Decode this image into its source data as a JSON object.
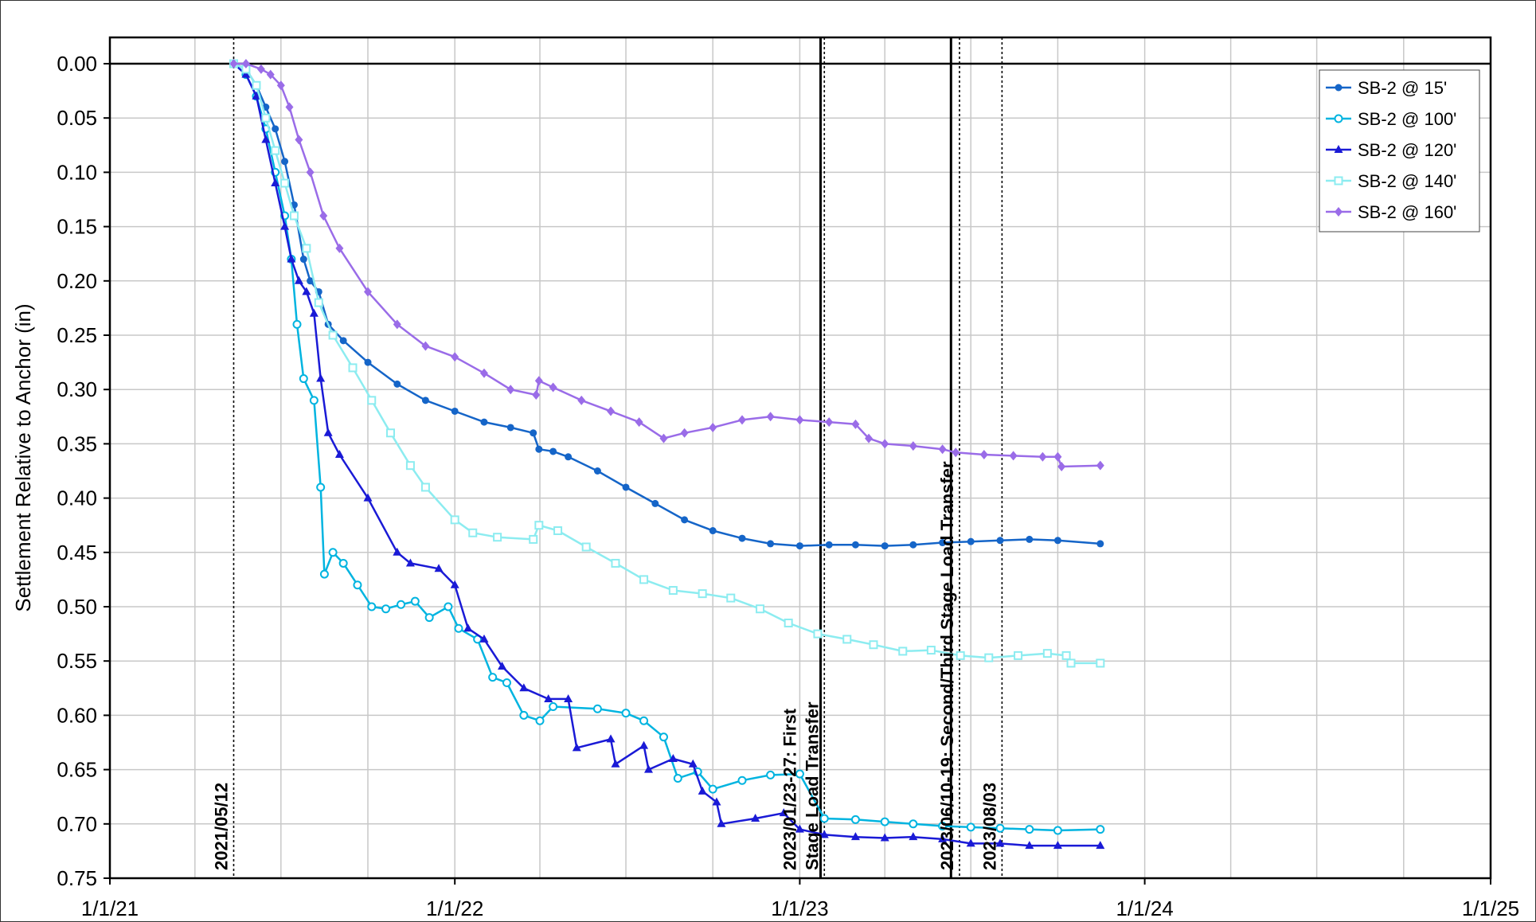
{
  "chart_data": {
    "type": "line",
    "title": "",
    "xlabel": "",
    "ylabel": "Settlement Relative to Anchor (in)",
    "x_axis": {
      "type": "date",
      "min": "2021-01-01",
      "max": "2025-01-01",
      "labeled_ticks": [
        "1/1/21",
        "1/1/22",
        "1/1/23",
        "1/1/24",
        "1/1/25"
      ],
      "minor_grid": "every 3 months"
    },
    "y_axis": {
      "min": 0.0,
      "max": 0.75,
      "inverted": true,
      "step": 0.05,
      "tick_labels": [
        "0.00",
        "0.05",
        "0.10",
        "0.15",
        "0.20",
        "0.25",
        "0.30",
        "0.35",
        "0.40",
        "0.45",
        "0.50",
        "0.55",
        "0.60",
        "0.65",
        "0.70",
        "0.75"
      ]
    },
    "grid": true,
    "legend_position": "top-right",
    "annotations": [
      {
        "date": "2021-05-12",
        "style": "dotted",
        "label_lines": [
          "2021/05/12"
        ]
      },
      {
        "date": "2023-01-23",
        "style": "solid",
        "label_lines": []
      },
      {
        "date": "2023-01-27",
        "style": "dotted",
        "label_lines": [
          "2023/01/23-27: First",
          "Stage Load Transfer"
        ]
      },
      {
        "date": "2023-06-10",
        "style": "solid",
        "label_lines": []
      },
      {
        "date": "2023-06-19",
        "style": "dotted",
        "label_lines": [
          "2023/06/10-19: Second/Third Stage Load Transfer"
        ]
      },
      {
        "date": "2023-08-03",
        "style": "dotted",
        "label_lines": [
          "2023/08/03"
        ]
      }
    ],
    "series": [
      {
        "name": "SB-2 @ 15'",
        "color": "#1565c8",
        "marker": "filled-circle",
        "points": [
          [
            "2021-05-12",
            0.0
          ],
          [
            "2021-05-25",
            0.005
          ],
          [
            "2021-06-05",
            0.02
          ],
          [
            "2021-06-15",
            0.04
          ],
          [
            "2021-06-25",
            0.06
          ],
          [
            "2021-07-05",
            0.09
          ],
          [
            "2021-07-15",
            0.13
          ],
          [
            "2021-07-25",
            0.18
          ],
          [
            "2021-08-01",
            0.2
          ],
          [
            "2021-08-10",
            0.21
          ],
          [
            "2021-08-20",
            0.24
          ],
          [
            "2021-09-05",
            0.255
          ],
          [
            "2021-10-01",
            0.275
          ],
          [
            "2021-11-01",
            0.295
          ],
          [
            "2021-12-01",
            0.31
          ],
          [
            "2022-01-01",
            0.32
          ],
          [
            "2022-02-01",
            0.33
          ],
          [
            "2022-03-01",
            0.335
          ],
          [
            "2022-03-25",
            0.34
          ],
          [
            "2022-03-31",
            0.355
          ],
          [
            "2022-04-15",
            0.357
          ],
          [
            "2022-05-01",
            0.362
          ],
          [
            "2022-06-01",
            0.375
          ],
          [
            "2022-07-01",
            0.39
          ],
          [
            "2022-08-01",
            0.405
          ],
          [
            "2022-09-01",
            0.42
          ],
          [
            "2022-10-01",
            0.43
          ],
          [
            "2022-11-01",
            0.437
          ],
          [
            "2022-12-01",
            0.442
          ],
          [
            "2023-01-01",
            0.444
          ],
          [
            "2023-02-01",
            0.443
          ],
          [
            "2023-03-01",
            0.443
          ],
          [
            "2023-04-01",
            0.444
          ],
          [
            "2023-05-01",
            0.443
          ],
          [
            "2023-06-01",
            0.441
          ],
          [
            "2023-07-01",
            0.44
          ],
          [
            "2023-08-01",
            0.439
          ],
          [
            "2023-09-01",
            0.438
          ],
          [
            "2023-10-01",
            0.439
          ],
          [
            "2023-11-15",
            0.442
          ]
        ]
      },
      {
        "name": "SB-2 @ 100'",
        "color": "#00b4e0",
        "marker": "open-circle",
        "points": [
          [
            "2021-05-12",
            0.0
          ],
          [
            "2021-05-25",
            0.01
          ],
          [
            "2021-06-05",
            0.03
          ],
          [
            "2021-06-15",
            0.06
          ],
          [
            "2021-06-25",
            0.1
          ],
          [
            "2021-07-05",
            0.14
          ],
          [
            "2021-07-12",
            0.18
          ],
          [
            "2021-07-18",
            0.24
          ],
          [
            "2021-07-25",
            0.29
          ],
          [
            "2021-08-05",
            0.31
          ],
          [
            "2021-08-12",
            0.39
          ],
          [
            "2021-08-16",
            0.47
          ],
          [
            "2021-08-25",
            0.45
          ],
          [
            "2021-09-05",
            0.46
          ],
          [
            "2021-09-20",
            0.48
          ],
          [
            "2021-10-05",
            0.5
          ],
          [
            "2021-10-20",
            0.502
          ],
          [
            "2021-11-05",
            0.498
          ],
          [
            "2021-11-20",
            0.495
          ],
          [
            "2021-12-05",
            0.51
          ],
          [
            "2021-12-25",
            0.5
          ],
          [
            "2022-01-05",
            0.52
          ],
          [
            "2022-01-25",
            0.53
          ],
          [
            "2022-02-10",
            0.565
          ],
          [
            "2022-02-25",
            0.57
          ],
          [
            "2022-03-15",
            0.6
          ],
          [
            "2022-04-01",
            0.605
          ],
          [
            "2022-04-15",
            0.592
          ],
          [
            "2022-06-01",
            0.594
          ],
          [
            "2022-07-01",
            0.598
          ],
          [
            "2022-07-20",
            0.605
          ],
          [
            "2022-08-10",
            0.62
          ],
          [
            "2022-08-25",
            0.658
          ],
          [
            "2022-09-15",
            0.652
          ],
          [
            "2022-10-01",
            0.668
          ],
          [
            "2022-11-01",
            0.66
          ],
          [
            "2022-12-01",
            0.655
          ],
          [
            "2023-01-01",
            0.654
          ],
          [
            "2023-01-27",
            0.695
          ],
          [
            "2023-03-01",
            0.696
          ],
          [
            "2023-04-01",
            0.698
          ],
          [
            "2023-05-01",
            0.7
          ],
          [
            "2023-06-01",
            0.702
          ],
          [
            "2023-07-01",
            0.703
          ],
          [
            "2023-08-01",
            0.704
          ],
          [
            "2023-09-01",
            0.705
          ],
          [
            "2023-10-01",
            0.706
          ],
          [
            "2023-11-15",
            0.705
          ]
        ]
      },
      {
        "name": "SB-2 @ 120'",
        "color": "#1a1ad6",
        "marker": "filled-triangle",
        "points": [
          [
            "2021-05-12",
            0.0
          ],
          [
            "2021-05-25",
            0.01
          ],
          [
            "2021-06-05",
            0.03
          ],
          [
            "2021-06-15",
            0.07
          ],
          [
            "2021-06-25",
            0.11
          ],
          [
            "2021-07-05",
            0.15
          ],
          [
            "2021-07-12",
            0.18
          ],
          [
            "2021-07-20",
            0.2
          ],
          [
            "2021-07-28",
            0.21
          ],
          [
            "2021-08-05",
            0.23
          ],
          [
            "2021-08-12",
            0.29
          ],
          [
            "2021-08-20",
            0.34
          ],
          [
            "2021-09-01",
            0.36
          ],
          [
            "2021-10-01",
            0.4
          ],
          [
            "2021-11-01",
            0.45
          ],
          [
            "2021-11-15",
            0.46
          ],
          [
            "2021-12-15",
            0.465
          ],
          [
            "2022-01-01",
            0.48
          ],
          [
            "2022-01-15",
            0.52
          ],
          [
            "2022-02-01",
            0.53
          ],
          [
            "2022-02-20",
            0.555
          ],
          [
            "2022-03-15",
            0.575
          ],
          [
            "2022-04-10",
            0.585
          ],
          [
            "2022-05-01",
            0.585
          ],
          [
            "2022-05-10",
            0.63
          ],
          [
            "2022-06-15",
            0.622
          ],
          [
            "2022-06-20",
            0.645
          ],
          [
            "2022-07-20",
            0.628
          ],
          [
            "2022-07-25",
            0.65
          ],
          [
            "2022-08-20",
            0.64
          ],
          [
            "2022-09-10",
            0.645
          ],
          [
            "2022-09-20",
            0.67
          ],
          [
            "2022-10-05",
            0.68
          ],
          [
            "2022-10-10",
            0.7
          ],
          [
            "2022-11-15",
            0.695
          ],
          [
            "2022-12-15",
            0.69
          ],
          [
            "2023-01-01",
            0.705
          ],
          [
            "2023-01-27",
            0.71
          ],
          [
            "2023-03-01",
            0.712
          ],
          [
            "2023-04-01",
            0.713
          ],
          [
            "2023-05-01",
            0.712
          ],
          [
            "2023-06-01",
            0.714
          ],
          [
            "2023-07-01",
            0.718
          ],
          [
            "2023-08-01",
            0.718
          ],
          [
            "2023-09-01",
            0.72
          ],
          [
            "2023-10-01",
            0.72
          ],
          [
            "2023-11-15",
            0.72
          ]
        ]
      },
      {
        "name": "SB-2 @ 140'",
        "color": "#8cecf0",
        "marker": "open-square",
        "points": [
          [
            "2021-05-12",
            0.0
          ],
          [
            "2021-05-25",
            0.005
          ],
          [
            "2021-06-05",
            0.02
          ],
          [
            "2021-06-15",
            0.05
          ],
          [
            "2021-06-25",
            0.08
          ],
          [
            "2021-07-05",
            0.11
          ],
          [
            "2021-07-15",
            0.14
          ],
          [
            "2021-07-28",
            0.17
          ],
          [
            "2021-08-10",
            0.22
          ],
          [
            "2021-08-25",
            0.25
          ],
          [
            "2021-09-15",
            0.28
          ],
          [
            "2021-10-05",
            0.31
          ],
          [
            "2021-10-25",
            0.34
          ],
          [
            "2021-11-15",
            0.37
          ],
          [
            "2021-12-01",
            0.39
          ],
          [
            "2022-01-01",
            0.42
          ],
          [
            "2022-01-20",
            0.432
          ],
          [
            "2022-02-15",
            0.436
          ],
          [
            "2022-03-25",
            0.438
          ],
          [
            "2022-03-31",
            0.425
          ],
          [
            "2022-04-20",
            0.43
          ],
          [
            "2022-05-20",
            0.445
          ],
          [
            "2022-06-20",
            0.46
          ],
          [
            "2022-07-20",
            0.475
          ],
          [
            "2022-08-20",
            0.485
          ],
          [
            "2022-09-20",
            0.488
          ],
          [
            "2022-10-20",
            0.492
          ],
          [
            "2022-11-20",
            0.502
          ],
          [
            "2022-12-20",
            0.515
          ],
          [
            "2023-01-20",
            0.525
          ],
          [
            "2023-02-20",
            0.53
          ],
          [
            "2023-03-20",
            0.535
          ],
          [
            "2023-04-20",
            0.541
          ],
          [
            "2023-05-20",
            0.54
          ],
          [
            "2023-06-20",
            0.545
          ],
          [
            "2023-07-20",
            0.547
          ],
          [
            "2023-08-20",
            0.545
          ],
          [
            "2023-09-20",
            0.543
          ],
          [
            "2023-10-10",
            0.545
          ],
          [
            "2023-10-15",
            0.552
          ],
          [
            "2023-11-15",
            0.552
          ]
        ]
      },
      {
        "name": "SB-2 @ 160'",
        "color": "#9a6ce8",
        "marker": "filled-diamond",
        "points": [
          [
            "2021-05-12",
            0.0
          ],
          [
            "2021-05-25",
            0.0
          ],
          [
            "2021-06-10",
            0.005
          ],
          [
            "2021-06-20",
            0.01
          ],
          [
            "2021-07-01",
            0.02
          ],
          [
            "2021-07-10",
            0.04
          ],
          [
            "2021-07-20",
            0.07
          ],
          [
            "2021-08-01",
            0.1
          ],
          [
            "2021-08-15",
            0.14
          ],
          [
            "2021-09-01",
            0.17
          ],
          [
            "2021-10-01",
            0.21
          ],
          [
            "2021-11-01",
            0.24
          ],
          [
            "2021-12-01",
            0.26
          ],
          [
            "2022-01-01",
            0.27
          ],
          [
            "2022-02-01",
            0.285
          ],
          [
            "2022-03-01",
            0.3
          ],
          [
            "2022-03-28",
            0.305
          ],
          [
            "2022-03-31",
            0.292
          ],
          [
            "2022-04-15",
            0.298
          ],
          [
            "2022-05-15",
            0.31
          ],
          [
            "2022-06-15",
            0.32
          ],
          [
            "2022-07-15",
            0.33
          ],
          [
            "2022-08-10",
            0.345
          ],
          [
            "2022-09-01",
            0.34
          ],
          [
            "2022-10-01",
            0.335
          ],
          [
            "2022-11-01",
            0.328
          ],
          [
            "2022-12-01",
            0.325
          ],
          [
            "2023-01-01",
            0.328
          ],
          [
            "2023-02-01",
            0.33
          ],
          [
            "2023-03-01",
            0.332
          ],
          [
            "2023-03-15",
            0.345
          ],
          [
            "2023-04-01",
            0.35
          ],
          [
            "2023-05-01",
            0.352
          ],
          [
            "2023-06-01",
            0.355
          ],
          [
            "2023-06-15",
            0.358
          ],
          [
            "2023-07-15",
            0.36
          ],
          [
            "2023-08-15",
            0.361
          ],
          [
            "2023-09-15",
            0.362
          ],
          [
            "2023-10-01",
            0.362
          ],
          [
            "2023-10-05",
            0.371
          ],
          [
            "2023-11-15",
            0.37
          ]
        ]
      }
    ]
  }
}
